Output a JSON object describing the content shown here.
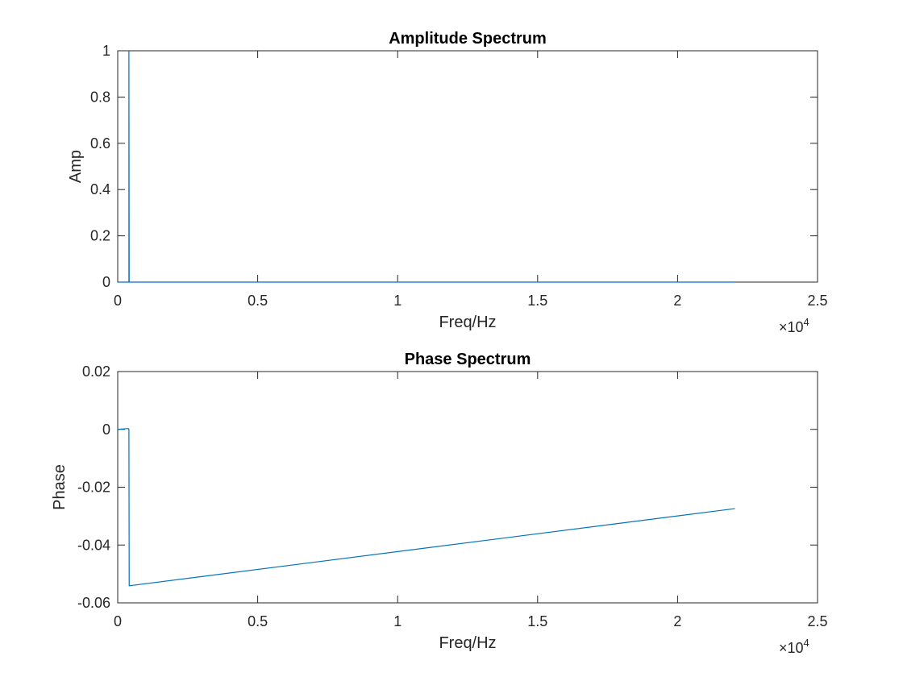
{
  "chart_data": [
    {
      "type": "line",
      "title": "Amplitude Spectrum",
      "xlabel": "Freq/Hz",
      "ylabel": "Amp",
      "xlim": [
        0,
        25000
      ],
      "ylim": [
        0,
        1
      ],
      "xticks": [
        0,
        5000,
        10000,
        15000,
        20000,
        25000
      ],
      "xtick_labels": [
        "0",
        "0.5",
        "1",
        "1.5",
        "2",
        "2.5"
      ],
      "yticks": [
        0,
        0.2,
        0.4,
        0.6,
        0.8,
        1
      ],
      "ytick_labels": [
        "0",
        "0.2",
        "0.4",
        "0.6",
        "0.8",
        "1"
      ],
      "x_exponent": {
        "base": "×10",
        "power": "4"
      },
      "grid": false,
      "color": "#0072bd",
      "series": [
        {
          "x": [
            0,
            390,
            400,
            400,
            410,
            22050
          ],
          "y": [
            0,
            0,
            0,
            1,
            0,
            0
          ]
        }
      ]
    },
    {
      "type": "line",
      "title": "Phase Spectrum",
      "xlabel": "Freq/Hz",
      "ylabel": "Phase",
      "xlim": [
        0,
        25000
      ],
      "ylim": [
        -0.06,
        0.02
      ],
      "xticks": [
        0,
        5000,
        10000,
        15000,
        20000,
        25000
      ],
      "xtick_labels": [
        "0",
        "0.5",
        "1",
        "1.5",
        "2",
        "2.5"
      ],
      "yticks": [
        -0.06,
        -0.04,
        -0.02,
        0,
        0.02
      ],
      "ytick_labels": [
        "-0.06",
        "-0.04",
        "-0.02",
        "0",
        "0.02"
      ],
      "x_exponent": {
        "base": "×10",
        "power": "4"
      },
      "grid": false,
      "color": "#0072bd",
      "series": [
        {
          "x": [
            0,
            380,
            400,
            410,
            22050
          ],
          "y": [
            0,
            0.0003,
            0,
            -0.0541,
            -0.0274
          ]
        }
      ]
    }
  ]
}
